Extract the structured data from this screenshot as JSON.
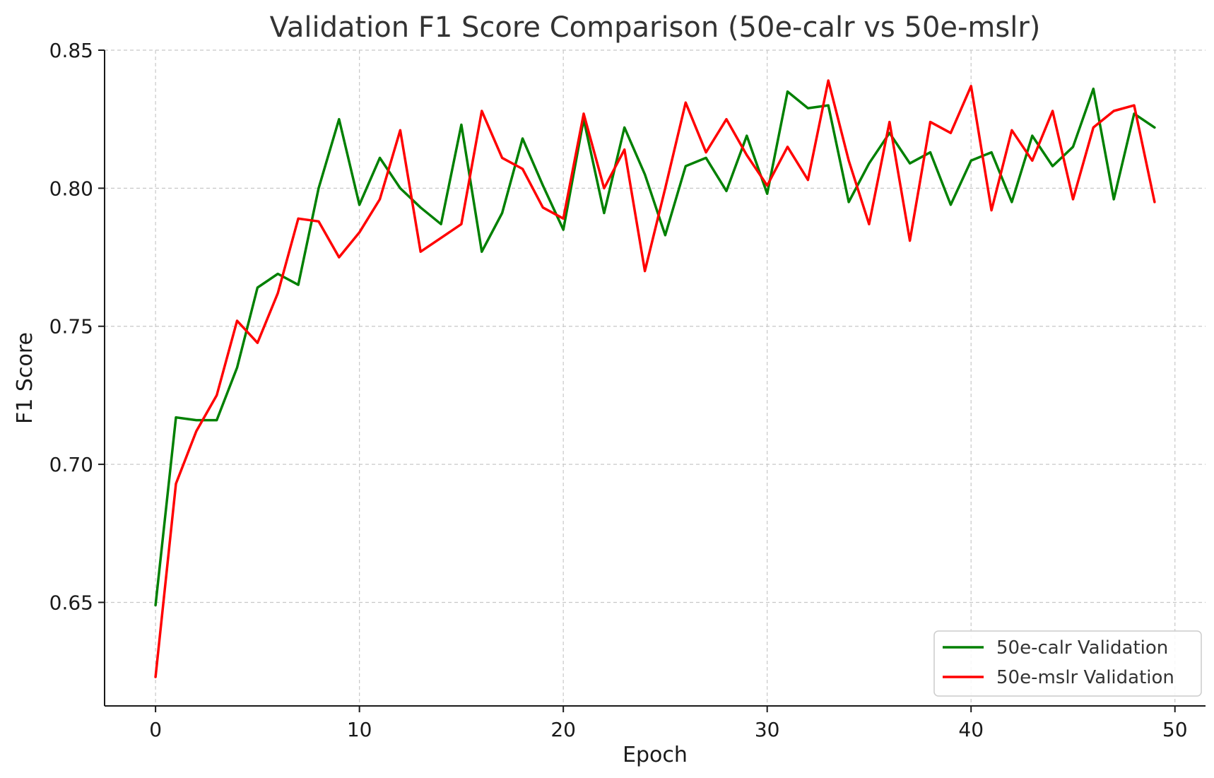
{
  "chart_data": {
    "type": "line",
    "title": "Validation F1 Score Comparison (50e-calr vs 50e-mslr)",
    "xlabel": "Epoch",
    "ylabel": "F1 Score",
    "xlim": [
      -2.5,
      51.5
    ],
    "ylim": [
      0.6125,
      0.85
    ],
    "xticks": [
      0,
      10,
      20,
      30,
      40,
      50
    ],
    "xtick_labels": [
      "0",
      "10",
      "20",
      "30",
      "40",
      "50"
    ],
    "yticks": [
      0.65,
      0.7,
      0.75,
      0.8,
      0.85
    ],
    "ytick_labels": [
      "0.65",
      "0.70",
      "0.75",
      "0.80",
      "0.85"
    ],
    "grid": true,
    "legend_position": "bottom-right",
    "x": [
      0,
      1,
      2,
      3,
      4,
      5,
      6,
      7,
      8,
      9,
      10,
      11,
      12,
      13,
      14,
      15,
      16,
      17,
      18,
      19,
      20,
      21,
      22,
      23,
      24,
      25,
      26,
      27,
      28,
      29,
      30,
      31,
      32,
      33,
      34,
      35,
      36,
      37,
      38,
      39,
      40,
      41,
      42,
      43,
      44,
      45,
      46,
      47,
      48,
      49
    ],
    "series": [
      {
        "name": "50e-calr Validation",
        "color": "#008000",
        "values": [
          0.649,
          0.717,
          0.716,
          0.716,
          0.735,
          0.764,
          0.769,
          0.765,
          0.8,
          0.825,
          0.794,
          0.811,
          0.8,
          0.793,
          0.787,
          0.823,
          0.777,
          0.791,
          0.818,
          0.801,
          0.785,
          0.825,
          0.791,
          0.822,
          0.805,
          0.783,
          0.808,
          0.811,
          0.799,
          0.819,
          0.798,
          0.835,
          0.829,
          0.83,
          0.795,
          0.809,
          0.82,
          0.809,
          0.813,
          0.794,
          0.81,
          0.813,
          0.795,
          0.819,
          0.808,
          0.815,
          0.836,
          0.796,
          0.827,
          0.822
        ]
      },
      {
        "name": "50e-mslr Validation",
        "color": "#ff0000",
        "values": [
          0.623,
          0.693,
          0.712,
          0.725,
          0.752,
          0.744,
          0.762,
          0.789,
          0.788,
          0.775,
          0.784,
          0.796,
          0.821,
          0.777,
          0.782,
          0.787,
          0.828,
          0.811,
          0.807,
          0.793,
          0.789,
          0.827,
          0.8,
          0.814,
          0.77,
          0.8,
          0.831,
          0.813,
          0.825,
          0.812,
          0.801,
          0.815,
          0.803,
          0.839,
          0.81,
          0.787,
          0.824,
          0.781,
          0.824,
          0.82,
          0.837,
          0.792,
          0.821,
          0.81,
          0.828,
          0.796,
          0.822,
          0.828,
          0.83,
          0.795
        ]
      }
    ]
  }
}
